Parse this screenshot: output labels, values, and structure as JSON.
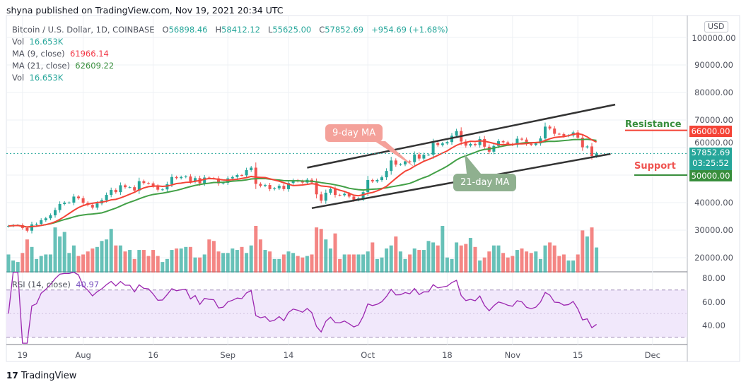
{
  "publish_line": "shyna published on TradingView.com, Nov 19, 2021 20:34 UTC",
  "legend": {
    "symbol": "Bitcoin / U.S. Dollar, 1D, COINBASE",
    "open_label": "O",
    "open": "56898.46",
    "high_label": "H",
    "high": "58412.12",
    "low_label": "L",
    "low": "55625.00",
    "close_label": "C",
    "close": "57852.69",
    "change": "+954.69 (+1.68%)",
    "vol_label": "Vol",
    "vol": "16.653K",
    "ma9_label": "MA (9, close)",
    "ma9": "61966.14",
    "ma21_label": "MA (21, close)",
    "ma21": "62609.22",
    "vol2_label": "Vol",
    "vol2": "16.653K",
    "rsi_label": "RSI (14, close)",
    "rsi": "40.97"
  },
  "currency": "USD",
  "annotations": {
    "ma9_note": "9-day MA",
    "ma21_note": "21-day MA",
    "resistance": "Resistance",
    "support": "Support",
    "resistance_price": "66000.00",
    "support_price": "50000.00",
    "last_price": "57852.69",
    "countdown": "03:25:52"
  },
  "colors": {
    "up": "#26a69a",
    "down": "#ef5350",
    "ma9": "#f44336",
    "ma21": "#43a047",
    "rsi": "#9c27b0"
  },
  "footer_logo": "TradingView",
  "chart_data": {
    "type": "candlestick",
    "start_date": "2021-07-16",
    "first_open_usd_thousands": 31.4,
    "close_usd_thousands": [
      31.5,
      31.8,
      31.8,
      30.8,
      29.8,
      32.1,
      32.3,
      33.6,
      34.3,
      35.4,
      37.3,
      39.5,
      40.0,
      40.0,
      42.2,
      41.6,
      39.9,
      39.2,
      38.2,
      39.7,
      40.9,
      42.8,
      44.6,
      43.8,
      46.3,
      45.6,
      45.6,
      44.4,
      47.8,
      47.1,
      47.0,
      46.0,
      44.7,
      44.8,
      46.7,
      49.3,
      48.9,
      49.3,
      49.5,
      47.7,
      48.9,
      47.0,
      49.1,
      48.9,
      48.8,
      47.0,
      47.2,
      48.8,
      49.3,
      50.0,
      49.9,
      51.8,
      52.7,
      46.8,
      46.1,
      46.4,
      44.9,
      45.2,
      46.1,
      44.9,
      47.1,
      48.1,
      47.8,
      47.3,
      48.3,
      47.3,
      43.0,
      40.7,
      43.6,
      44.9,
      42.8,
      42.7,
      43.2,
      42.2,
      41.0,
      41.5,
      43.8,
      48.2,
      47.7,
      48.2,
      49.2,
      51.5,
      55.3,
      53.8,
      53.9,
      55.0,
      54.7,
      57.5,
      56.0,
      57.4,
      57.4,
      61.7,
      60.9,
      61.5,
      62.0,
      64.3,
      66.0,
      62.2,
      60.7,
      61.3,
      60.9,
      63.1,
      60.3,
      58.5,
      60.6,
      62.3,
      61.9,
      61.3,
      61.0,
      63.2,
      62.9,
      61.4,
      61.0,
      61.5,
      63.3,
      67.6,
      66.9,
      65.0,
      64.9,
      64.2,
      64.4,
      65.5,
      63.6,
      60.1,
      60.4,
      56.9,
      57.85269
    ],
    "volume_thousands": [
      12,
      8,
      7,
      13,
      22,
      17,
      9,
      11,
      12,
      12,
      30,
      24,
      27,
      13,
      18,
      11,
      12,
      14,
      16,
      17,
      21,
      22,
      29,
      18,
      18,
      14,
      15,
      9,
      15,
      15,
      11,
      15,
      11,
      7,
      9,
      15,
      16,
      16,
      17,
      17,
      10,
      10,
      12,
      22,
      21,
      14,
      13,
      13,
      16,
      15,
      17,
      13,
      18,
      31,
      22,
      15,
      14,
      9,
      9,
      12,
      14,
      13,
      11,
      10,
      11,
      12,
      30,
      29,
      22,
      16,
      26,
      9,
      12,
      12,
      12,
      12,
      12,
      14,
      20,
      9,
      10,
      16,
      18,
      24,
      14,
      9,
      12,
      16,
      15,
      15,
      21,
      20,
      18,
      31,
      10,
      9,
      20,
      18,
      19,
      23,
      17,
      8,
      10,
      14,
      18,
      18,
      13,
      10,
      11,
      15,
      16,
      14,
      13,
      14,
      9,
      18,
      20,
      18,
      11,
      12,
      8,
      8,
      12,
      28,
      24,
      30,
      16.653
    ],
    "indicators": [
      "MA 9",
      "MA 21",
      "Volume",
      "RSI 14"
    ],
    "price_ticks": [
      "100000.00",
      "90000.00",
      "80000.00",
      "70000.00",
      "60000.00",
      "40000.00",
      "30000.00",
      "20000.00"
    ],
    "price_tick_values": [
      100000,
      90000,
      80000,
      70000,
      60000,
      40000,
      30000,
      20000
    ],
    "rsi_ticks": [
      "80.00",
      "60.00",
      "40.00"
    ],
    "rsi_tick_values": [
      80,
      60,
      40
    ],
    "rsi_bands": [
      30,
      70
    ],
    "time_ticks": [
      {
        "label": "19",
        "date": "2021-07-19"
      },
      {
        "label": "Aug",
        "date": "2021-08-01"
      },
      {
        "label": "16",
        "date": "2021-08-16"
      },
      {
        "label": "Sep",
        "date": "2021-09-01"
      },
      {
        "label": "14",
        "date": "2021-09-14"
      },
      {
        "label": "Oct",
        "date": "2021-10-01"
      },
      {
        "label": "18",
        "date": "2021-10-18"
      },
      {
        "label": "Nov",
        "date": "2021-11-01"
      },
      {
        "label": "15",
        "date": "2021-11-15"
      },
      {
        "label": "Dec",
        "date": "2021-12-01"
      }
    ],
    "trendlines": [
      {
        "name": "upper-channel",
        "from": {
          "date": "2021-09-18",
          "price": 52700
        },
        "to": {
          "date": "2021-11-23",
          "price": 75600
        }
      },
      {
        "name": "lower-channel",
        "from": {
          "date": "2021-09-19",
          "price": 38000
        },
        "to": {
          "date": "2021-11-22",
          "price": 57700
        }
      }
    ],
    "levels": [
      {
        "name": "resistance",
        "price": 66000
      },
      {
        "name": "support",
        "price": 50000
      }
    ]
  }
}
